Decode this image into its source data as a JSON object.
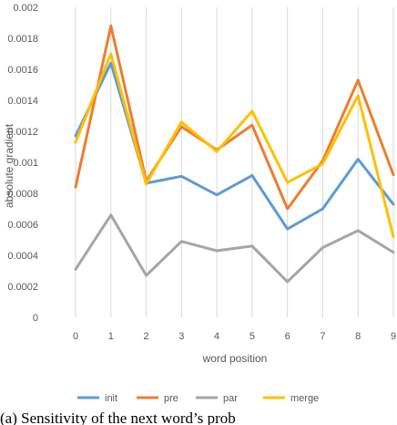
{
  "chart_data": {
    "type": "line",
    "xlabel": "word position",
    "ylabel": "absolute gradient",
    "x": [
      0,
      1,
      2,
      3,
      4,
      5,
      6,
      7,
      8,
      9
    ],
    "x_tick_labels": [
      "0",
      "1",
      "2",
      "3",
      "4",
      "5",
      "6",
      "7",
      "8",
      "9"
    ],
    "ylim": [
      0,
      0.002
    ],
    "y_ticks": [
      0,
      0.0002,
      0.0004,
      0.0006,
      0.0008,
      0.001,
      0.0012,
      0.0014,
      0.0016,
      0.0018,
      0.002
    ],
    "y_tick_labels": [
      "0",
      "0.0002",
      "0.0004",
      "0.0006",
      "0.0008",
      "0.001",
      "0.0012",
      "0.0014",
      "0.0016",
      "0.0018",
      "0.002"
    ],
    "grid": "vertical",
    "legend_position": "bottom",
    "series": [
      {
        "name": "init",
        "color": "#5b9bd5",
        "values": [
          0.00117,
          0.00164,
          0.000865,
          0.00091,
          0.00079,
          0.000915,
          0.00057,
          0.0007,
          0.00102,
          0.00073
        ]
      },
      {
        "name": "pre",
        "color": "#ed7d31",
        "values": [
          0.00084,
          0.00188,
          0.00088,
          0.00123,
          0.00108,
          0.00124,
          0.0007,
          0.00101,
          0.00153,
          0.00092
        ]
      },
      {
        "name": "par",
        "color": "#a5a5a5",
        "values": [
          0.00031,
          0.00066,
          0.00027,
          0.00049,
          0.00043,
          0.00046,
          0.00023,
          0.00045,
          0.00056,
          0.00042
        ]
      },
      {
        "name": "merge",
        "color": "#ffc000",
        "values": [
          0.00113,
          0.0017,
          0.00086,
          0.00126,
          0.00107,
          0.00133,
          0.00087,
          0.00099,
          0.00143,
          0.00052
        ]
      }
    ]
  },
  "caption": "(a)  Sensitivity of the next word’s prob"
}
